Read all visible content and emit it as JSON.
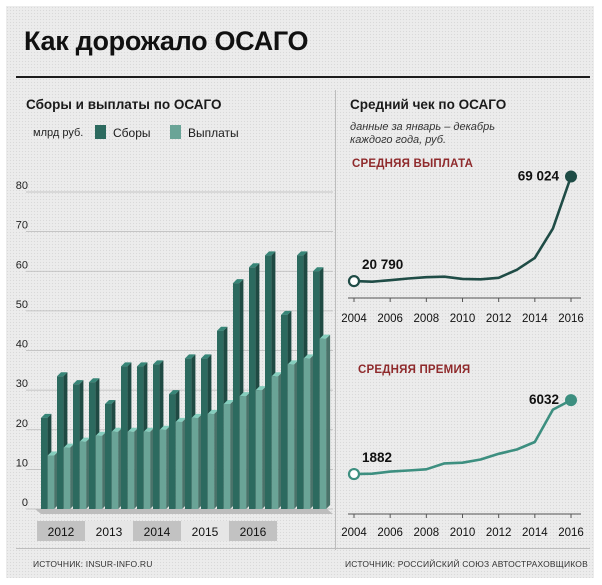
{
  "title": "Как дорожало ОСАГО",
  "left_panel": {
    "title": "Сборы и выплаты по ОСАГО",
    "unit": "млрд руб.",
    "legend": [
      {
        "label": "Сборы",
        "color": "#2c6a5f"
      },
      {
        "label": "Выплаты",
        "color": "#6aa497"
      }
    ],
    "source": "ИСТОЧНИК: INSUR-INFO.RU"
  },
  "right_panel": {
    "title": "Средний чек по ОСАГО",
    "note_line1": "данные за январь – декабрь",
    "note_line2": "каждого года, руб.",
    "payout_label": "СРЕДНЯЯ ВЫПЛАТА",
    "premium_label": "СРЕДНЯЯ ПРЕМИЯ",
    "source": "ИСТОЧНИК: РОССИЙСКИЙ СОЮЗ АВТОСТРАХОВЩИКОВ"
  },
  "chart_data": [
    {
      "type": "bar",
      "title": "Сборы и выплаты по ОСАГО",
      "ylabel": "млрд руб.",
      "ylim": [
        0,
        85
      ],
      "yticks": [
        0,
        10,
        20,
        30,
        40,
        50,
        60,
        70,
        80
      ],
      "years": [
        "2012",
        "2013",
        "2014",
        "2015",
        "2016"
      ],
      "quarters_per_year": 3,
      "grid": true,
      "series": [
        {
          "name": "Сборы",
          "color": "#2c6a5f",
          "values": [
            23,
            33.5,
            31.5,
            32,
            26.5,
            36,
            36,
            36.5,
            29,
            38,
            38,
            45,
            57,
            61,
            64,
            49,
            64,
            60
          ]
        },
        {
          "name": "Выплаты",
          "color": "#6aa497",
          "values": [
            13.5,
            15.5,
            17,
            18.5,
            19.5,
            19.5,
            19.5,
            20,
            22,
            23,
            24,
            26.5,
            28.5,
            30,
            33.5,
            36.5,
            38,
            43
          ]
        }
      ]
    },
    {
      "type": "line",
      "title": "СРЕДНЯЯ ВЫПЛАТА",
      "x": [
        2004,
        2005,
        2006,
        2007,
        2008,
        2009,
        2010,
        2011,
        2012,
        2013,
        2014,
        2015,
        2016
      ],
      "y": [
        20790,
        20500,
        21200,
        22000,
        22600,
        22800,
        21800,
        21600,
        22300,
        26000,
        31500,
        45000,
        69024
      ],
      "xticks": [
        2004,
        2006,
        2008,
        2010,
        2012,
        2014,
        2016
      ],
      "ylim": [
        13000,
        72000
      ],
      "labels": [
        {
          "x": 2004,
          "text": "20 790"
        },
        {
          "x": 2016,
          "text": "69 024"
        }
      ]
    },
    {
      "type": "line",
      "title": "СРЕДНЯЯ ПРЕМИЯ",
      "x": [
        2004,
        2005,
        2006,
        2007,
        2008,
        2009,
        2010,
        2011,
        2012,
        2013,
        2014,
        2015,
        2016
      ],
      "y": [
        1882,
        1900,
        2020,
        2080,
        2150,
        2480,
        2520,
        2700,
        3020,
        3260,
        3680,
        5500,
        6032
      ],
      "xticks": [
        2004,
        2006,
        2008,
        2010,
        2012,
        2014,
        2016
      ],
      "ylim": [
        1100,
        6600
      ],
      "labels": [
        {
          "x": 2004,
          "text": "1882"
        },
        {
          "x": 2016,
          "text": "6032"
        }
      ]
    }
  ]
}
